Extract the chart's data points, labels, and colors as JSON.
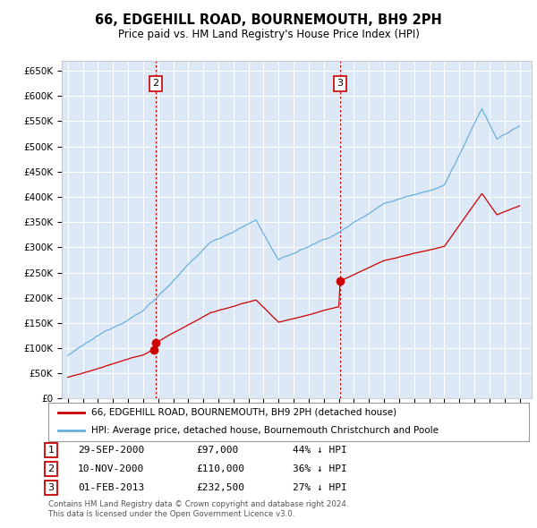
{
  "title": "66, EDGEHILL ROAD, BOURNEMOUTH, BH9 2PH",
  "subtitle": "Price paid vs. HM Land Registry's House Price Index (HPI)",
  "hpi_color": "#6ab0de",
  "property_color": "#cc0000",
  "vline_color": "#cc0000",
  "bg_color": "#dce8f5",
  "legend_line1": "66, EDGEHILL ROAD, BOURNEMOUTH, BH9 2PH (detached house)",
  "legend_line2": "HPI: Average price, detached house, Bournemouth Christchurch and Poole",
  "sale1_label": "1",
  "sale1_date": "29-SEP-2000",
  "sale1_price": "£97,000",
  "sale1_pct": "44% ↓ HPI",
  "sale1_year": 2000.75,
  "sale1_value": 97000,
  "sale2_label": "2",
  "sale2_date": "10-NOV-2000",
  "sale2_price": "£110,000",
  "sale2_pct": "36% ↓ HPI",
  "sale2_year": 2000.83,
  "sale2_value": 110000,
  "sale3_label": "3",
  "sale3_date": "01-FEB-2013",
  "sale3_price": "£232,500",
  "sale3_pct": "27% ↓ HPI",
  "sale3_year": 2013.08,
  "sale3_value": 232500,
  "footnote1": "Contains HM Land Registry data © Crown copyright and database right 2024.",
  "footnote2": "This data is licensed under the Open Government Licence v3.0."
}
